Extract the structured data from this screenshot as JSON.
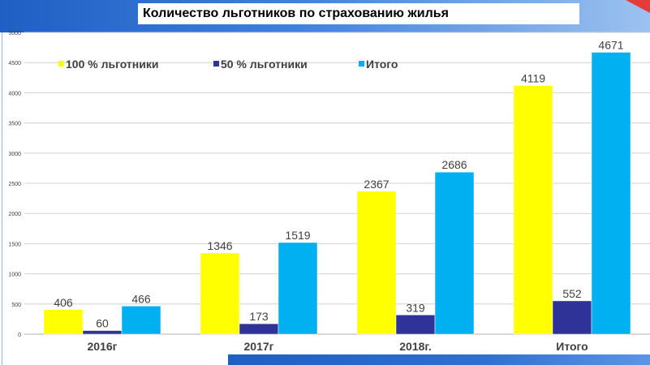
{
  "title": "Количество льготников по страхованию жилья",
  "colors": {
    "accent_blue": "#2f6fd0",
    "accent_red": "#e43b3b"
  },
  "chart_data": {
    "type": "bar",
    "categories": [
      "2016г",
      "2017г",
      "2018г.",
      "Итого"
    ],
    "series": [
      {
        "name": "100 % льготники",
        "color": "#ffff00",
        "values": [
          406,
          1346,
          2367,
          4119
        ]
      },
      {
        "name": "50 % льготники",
        "color": "#2f3397",
        "values": [
          60,
          173,
          319,
          552
        ]
      },
      {
        "name": "Итого",
        "color": "#00b0f0",
        "values": [
          466,
          1519,
          2686,
          4671
        ]
      }
    ],
    "y_ticks": [
      0,
      500,
      1000,
      1500,
      2000,
      2500,
      3000,
      3500,
      4000,
      4500,
      5000
    ],
    "ylim": [
      0,
      5000
    ],
    "grid": true,
    "legend_position": "top-left"
  }
}
